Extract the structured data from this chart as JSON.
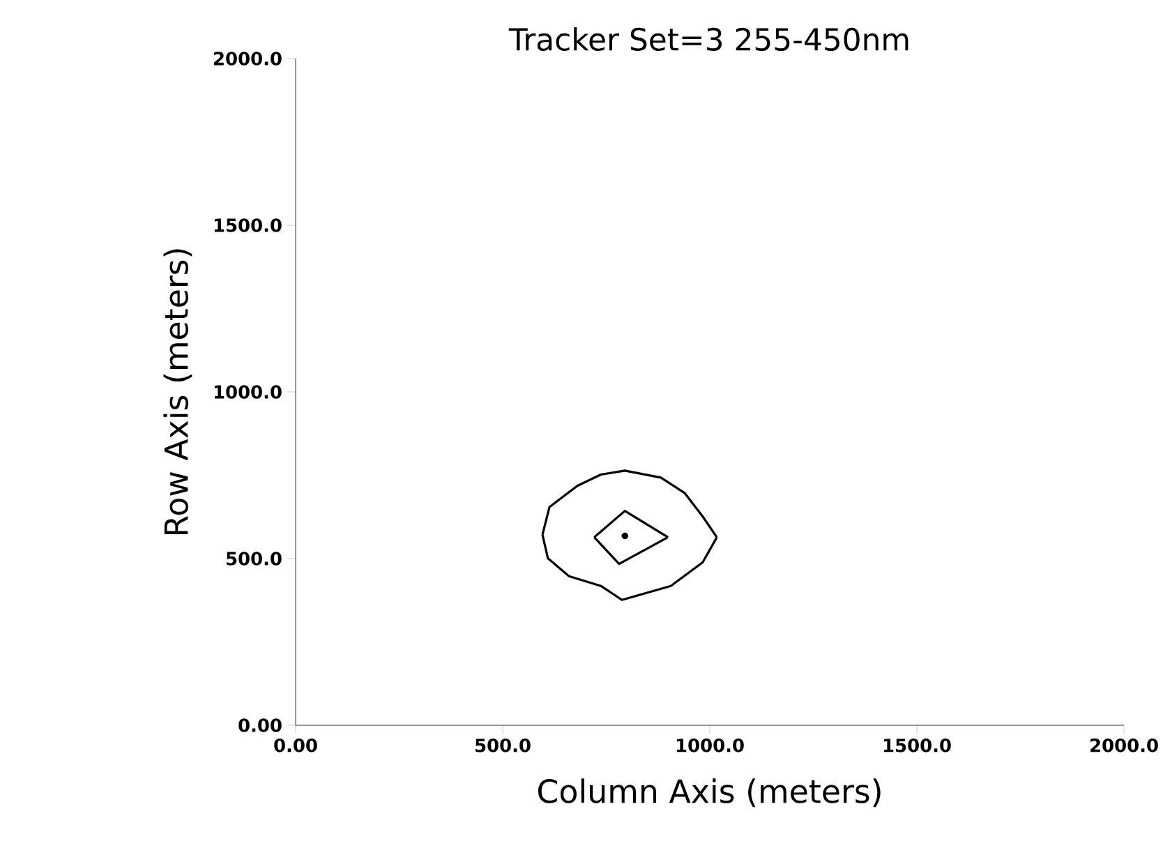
{
  "chart_data": {
    "type": "line",
    "title": "Tracker   Set=3   255-450nm",
    "xlabel": "Column Axis (meters)",
    "ylabel": "Row Axis (meters)",
    "xlim": [
      0,
      2000
    ],
    "ylim": [
      0,
      2000
    ],
    "xticks": [
      {
        "value": 0,
        "label": "0.00"
      },
      {
        "value": 500,
        "label": "500.0"
      },
      {
        "value": 1000,
        "label": "1000.0"
      },
      {
        "value": 1500,
        "label": "1500.0"
      },
      {
        "value": 2000,
        "label": "2000.0"
      }
    ],
    "yticks": [
      {
        "value": 0,
        "label": "0.00"
      },
      {
        "value": 500,
        "label": "500.0"
      },
      {
        "value": 1000,
        "label": "1000.0"
      },
      {
        "value": 1500,
        "label": "1500.0"
      },
      {
        "value": 2000,
        "label": "2000.0"
      }
    ],
    "grid": false,
    "line_style": "solid",
    "series": [
      {
        "color": "#000000",
        "x": [
          596,
          613,
          680,
          737,
          795,
          882,
          939,
          983,
          1017
        ],
        "values": [
          572,
          655,
          718,
          752,
          764,
          743,
          697,
          626,
          564
        ]
      },
      {
        "color": "#000000",
        "x": [
          596,
          609,
          660,
          737,
          788,
          906,
          983,
          1017
        ],
        "values": [
          572,
          501,
          447,
          418,
          376,
          418,
          489,
          564
        ]
      },
      {
        "color": "#000000",
        "x": [
          721,
          795,
          899
        ],
        "values": [
          564,
          643,
          564
        ]
      },
      {
        "color": "#000000",
        "x": [
          721,
          781,
          899
        ],
        "values": [
          564,
          484,
          564
        ]
      },
      {
        "type": "scatter",
        "color": "#000000",
        "x": [
          795
        ],
        "values": [
          568
        ]
      }
    ]
  }
}
